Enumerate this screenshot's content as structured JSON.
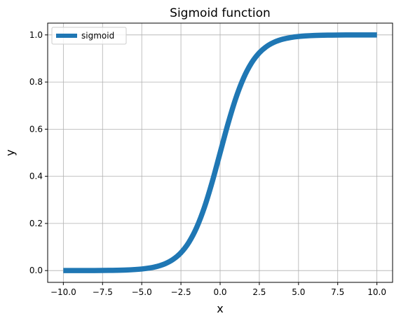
{
  "chart_data": {
    "type": "line",
    "title": "Sigmoid function",
    "xlabel": "x",
    "ylabel": "y",
    "xlim": [
      -11,
      11
    ],
    "ylim": [
      -0.05,
      1.05
    ],
    "grid": true,
    "legend_position": "top-left",
    "x_ticks": [
      -10.0,
      -7.5,
      -5.0,
      -2.5,
      0.0,
      2.5,
      5.0,
      7.5,
      10.0
    ],
    "x_tick_labels": [
      "−10.0",
      "−7.5",
      "−5.0",
      "−2.5",
      "0.0",
      "2.5",
      "5.0",
      "7.5",
      "10.0"
    ],
    "y_ticks": [
      0.0,
      0.2,
      0.4,
      0.6,
      0.8,
      1.0
    ],
    "y_tick_labels": [
      "0.0",
      "0.2",
      "0.4",
      "0.6",
      "0.8",
      "1.0"
    ],
    "series": [
      {
        "name": "sigmoid",
        "color": "#1f77b4",
        "x": [
          -10,
          -9,
          -8,
          -7,
          -6,
          -5,
          -4.5,
          -4,
          -3.5,
          -3,
          -2.5,
          -2,
          -1.5,
          -1,
          -0.5,
          0,
          0.5,
          1,
          1.5,
          2,
          2.5,
          3,
          3.5,
          4,
          4.5,
          5,
          6,
          7,
          8,
          9,
          10
        ],
        "y": [
          5e-05,
          0.00012,
          0.00034,
          0.00091,
          0.00247,
          0.00669,
          0.01099,
          0.01799,
          0.02931,
          0.04743,
          0.07586,
          0.1192,
          0.18243,
          0.26894,
          0.37754,
          0.5,
          0.62246,
          0.73106,
          0.81757,
          0.8808,
          0.92414,
          0.95257,
          0.97069,
          0.98201,
          0.98901,
          0.99331,
          0.99753,
          0.99909,
          0.99966,
          0.99988,
          0.99995
        ]
      }
    ]
  }
}
